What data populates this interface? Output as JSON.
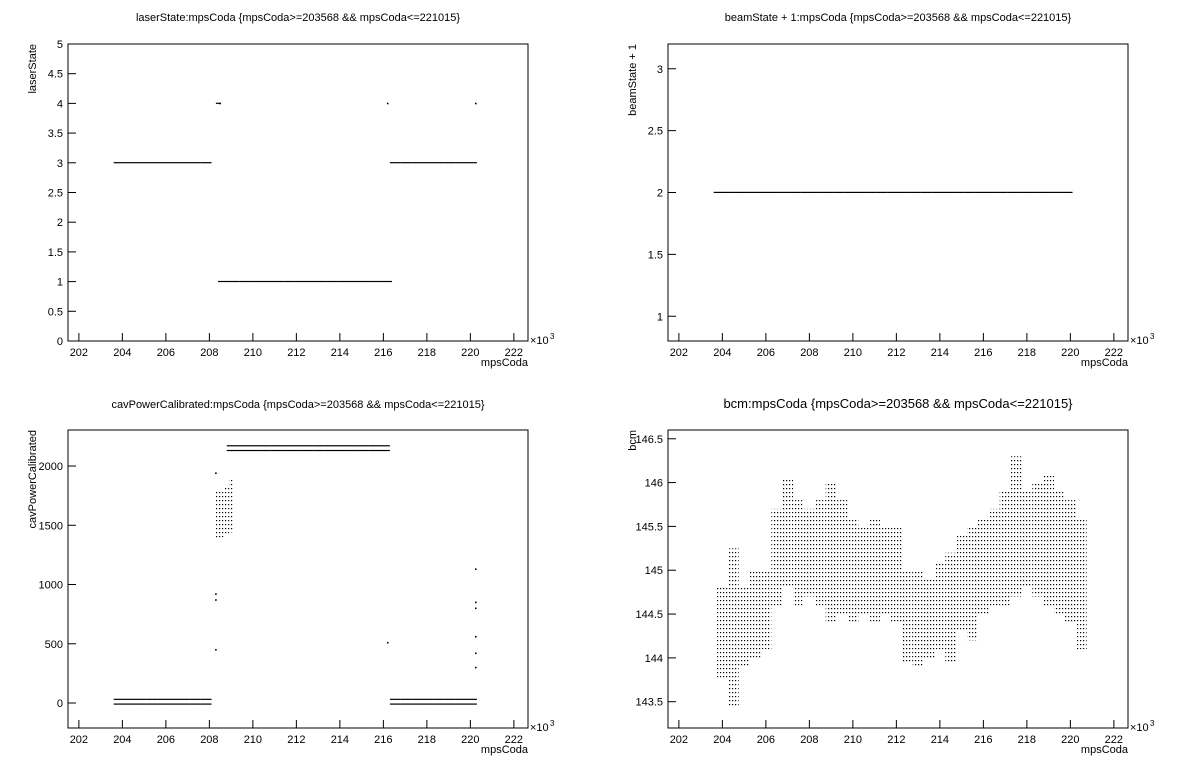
{
  "chart_data": [
    {
      "type": "scatter",
      "title": "laserState:mpsCoda {mpsCoda>=203568 && mpsCoda<=221015}",
      "xlabel": "mpsCoda",
      "ylabel": "laserState",
      "x_scale_label": "×10",
      "x_scale_exponent": "3",
      "color": "#000000",
      "xlim": [
        201.5,
        222.65
      ],
      "xticks": [
        202,
        204,
        206,
        208,
        210,
        212,
        214,
        216,
        218,
        220,
        222
      ],
      "ylim": [
        0,
        5
      ],
      "yticks": [
        0,
        0.5,
        1,
        1.5,
        2,
        2.5,
        3,
        3.5,
        4,
        4.5,
        5
      ],
      "series": [
        {
          "x": [
            203.6,
            204.1,
            204.6,
            205.1,
            205.6,
            206.1,
            206.6,
            207.1,
            207.6
          ],
          "values": [
            3,
            3,
            3,
            3,
            3,
            3,
            3,
            3,
            3
          ]
        },
        {
          "x": [
            208.4,
            208.9,
            209.4,
            209.9,
            210.4,
            210.9,
            211.4,
            211.9,
            212.4,
            212.9,
            213.4,
            213.9,
            214.4,
            214.9,
            215.4,
            215.9
          ],
          "values": [
            1,
            1,
            1,
            1,
            1,
            1,
            1,
            1,
            1,
            1,
            1,
            1,
            1,
            1,
            1,
            1
          ]
        },
        {
          "x": [
            216.3,
            216.8,
            217.3,
            217.8,
            218.3,
            218.8,
            219.3,
            219.8
          ],
          "values": [
            3,
            3,
            3,
            3,
            3,
            3,
            3,
            3
          ]
        },
        {
          "x": [
            208.3,
            208.5,
            216.2,
            220.25
          ],
          "values": [
            4,
            4,
            4,
            4
          ]
        }
      ]
    },
    {
      "type": "scatter",
      "title": "beamState + 1:mpsCoda {mpsCoda>=203568 && mpsCoda<=221015}",
      "xlabel": "mpsCoda",
      "ylabel": "beamState + 1",
      "x_scale_label": "×10",
      "x_scale_exponent": "3",
      "color": "#000000",
      "xlim": [
        201.5,
        222.65
      ],
      "xticks": [
        202,
        204,
        206,
        208,
        210,
        212,
        214,
        216,
        218,
        220,
        222
      ],
      "ylim": [
        0.8,
        3.2
      ],
      "yticks": [
        1,
        1.5,
        2,
        2.5,
        3
      ],
      "series": [
        {
          "x": [
            203.6,
            204.1,
            204.6,
            205.1,
            205.6,
            206.1,
            206.6,
            207.1,
            207.6,
            208.1,
            208.6,
            209.1,
            209.6,
            210.1,
            210.6,
            211.1,
            211.6,
            212.1,
            212.6,
            213.1,
            213.6,
            214.1,
            214.6,
            215.1,
            215.6,
            216.1,
            216.6,
            217.1,
            217.6,
            218.1,
            218.6,
            219.1,
            219.6
          ],
          "values": [
            2,
            2,
            2,
            2,
            2,
            2,
            2,
            2,
            2,
            2,
            2,
            2,
            2,
            2,
            2,
            2,
            2,
            2,
            2,
            2,
            2,
            2,
            2,
            2,
            2,
            2,
            2,
            2,
            2,
            2,
            2,
            2,
            2
          ]
        }
      ]
    },
    {
      "type": "scatter",
      "title": "cavPowerCalibrated:mpsCoda {mpsCoda>=203568 && mpsCoda<=221015}",
      "xlabel": "mpsCoda",
      "ylabel": "cavPowerCalibrated",
      "x_scale_label": "×10",
      "x_scale_exponent": "3",
      "color": "#000000",
      "xlim": [
        201.5,
        222.65
      ],
      "xticks": [
        202,
        204,
        206,
        208,
        210,
        212,
        214,
        216,
        218,
        220,
        222
      ],
      "ylim": [
        -211,
        2304
      ],
      "yticks": [
        0,
        500,
        1000,
        1500,
        2000
      ],
      "series": [
        {
          "x": [
            203.6,
            204.1,
            204.6,
            205.1,
            205.6,
            206.1,
            206.6,
            207.1,
            207.6
          ],
          "values": [
            30,
            30,
            30,
            30,
            30,
            30,
            30,
            30,
            30
          ]
        },
        {
          "x": [
            203.6,
            204.1,
            204.6,
            205.1,
            205.6,
            206.1,
            206.6,
            207.1,
            207.6
          ],
          "values": [
            -10,
            -10,
            -10,
            -10,
            -10,
            -10,
            -10,
            -10,
            -10
          ]
        },
        {
          "x": [
            208.8,
            209.3,
            209.8,
            210.3,
            210.8,
            211.3,
            211.8,
            212.3,
            212.8,
            213.3,
            213.8,
            214.3,
            214.8,
            215.3,
            215.8
          ],
          "values": [
            2170,
            2170,
            2170,
            2170,
            2170,
            2170,
            2170,
            2170,
            2170,
            2170,
            2170,
            2170,
            2170,
            2170,
            2170
          ]
        },
        {
          "x": [
            208.8,
            209.3,
            209.8,
            210.3,
            210.8,
            211.3,
            211.8,
            212.3,
            212.8,
            213.3,
            213.8,
            214.3,
            214.8,
            215.3,
            215.8
          ],
          "values": [
            2130,
            2130,
            2130,
            2130,
            2130,
            2130,
            2130,
            2130,
            2130,
            2130,
            2130,
            2130,
            2130,
            2130,
            2130
          ]
        },
        {
          "x": [
            216.3,
            216.8,
            217.3,
            217.8,
            218.3,
            218.8,
            219.3,
            219.8
          ],
          "values": [
            30,
            30,
            30,
            30,
            30,
            30,
            30,
            30
          ]
        },
        {
          "x": [
            216.3,
            216.8,
            217.3,
            217.8,
            218.3,
            218.8,
            219.3,
            219.8
          ],
          "values": [
            -10,
            -10,
            -10,
            -10,
            -10,
            -10,
            -10,
            -10
          ]
        },
        {
          "x": [
            208.3,
            208.5,
            208.7,
            208.9
          ],
          "low": [
            1380,
            1400,
            1420,
            1440
          ],
          "high": [
            1800,
            1780,
            1820,
            1900
          ]
        },
        {
          "x": [
            208.3,
            208.3,
            208.3,
            208.3,
            216.2,
            220.25,
            220.25,
            220.25,
            220.25,
            220.25,
            220.25
          ],
          "values": [
            450,
            870,
            920,
            1940,
            510,
            1130,
            850,
            800,
            560,
            420,
            300
          ]
        }
      ]
    },
    {
      "type": "scatter",
      "title": "bcm:mpsCoda {mpsCoda>=203568 && mpsCoda<=221015}",
      "xlabel": "mpsCoda",
      "ylabel": "bcm",
      "x_scale_label": "×10",
      "x_scale_exponent": "3",
      "color": "#000000",
      "xlim": [
        201.5,
        222.65
      ],
      "xticks": [
        202,
        204,
        206,
        208,
        210,
        212,
        214,
        216,
        218,
        220,
        222
      ],
      "ylim": [
        143.2,
        146.6
      ],
      "yticks": [
        143.5,
        144,
        144.5,
        145,
        145.5,
        146,
        146.5
      ],
      "series": [
        {
          "x": [
            203.75,
            204.25,
            204.75,
            205.25,
            205.75,
            206.25,
            206.75,
            207.25,
            207.75,
            208.25,
            208.75,
            209.25,
            209.75,
            210.25,
            210.75,
            211.25,
            211.75,
            212.25,
            212.75,
            213.25,
            213.75,
            214.25,
            214.75,
            215.25,
            215.75,
            216.25,
            216.75,
            217.25,
            217.75,
            218.25,
            218.75,
            219.25,
            219.75,
            220.25
          ],
          "low": [
            143.75,
            143.45,
            143.9,
            144.0,
            144.1,
            144.6,
            144.8,
            144.6,
            144.7,
            144.6,
            144.4,
            144.5,
            144.4,
            144.5,
            144.4,
            144.5,
            144.4,
            143.95,
            143.9,
            144.0,
            144.1,
            143.95,
            144.3,
            144.2,
            144.5,
            144.6,
            144.6,
            144.7,
            144.8,
            144.7,
            144.6,
            144.5,
            144.4,
            144.1
          ],
          "high": [
            144.8,
            145.25,
            144.8,
            145.0,
            145.0,
            145.7,
            146.05,
            145.8,
            145.7,
            145.8,
            146.0,
            145.8,
            145.6,
            145.5,
            145.6,
            145.5,
            145.5,
            145.0,
            145.0,
            144.9,
            145.1,
            145.2,
            145.4,
            145.5,
            145.6,
            145.7,
            145.9,
            146.3,
            145.9,
            146.0,
            146.1,
            145.9,
            145.8,
            145.6
          ]
        }
      ]
    }
  ]
}
